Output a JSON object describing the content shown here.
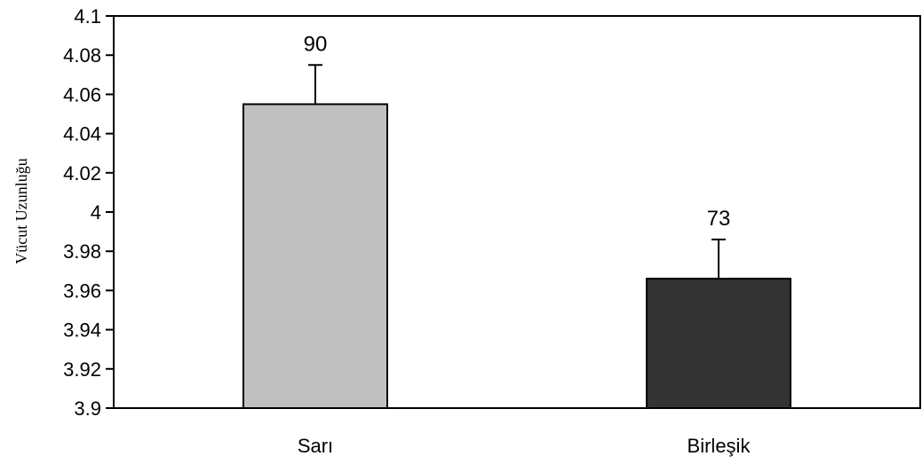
{
  "chart_data": {
    "type": "bar",
    "title": "",
    "xlabel": "",
    "ylabel": "Vücut Uzunluğu",
    "ylim": [
      3.9,
      4.1
    ],
    "yticks": [
      "3.9",
      "3.92",
      "3.94",
      "3.96",
      "3.98",
      "4",
      "4.02",
      "4.04",
      "4.06",
      "4.08",
      "4.1"
    ],
    "categories": [
      "Sarı",
      "Birleşik"
    ],
    "values": [
      4.055,
      3.966
    ],
    "error_upper": [
      0.02,
      0.02
    ],
    "data_labels": [
      "90",
      "73"
    ],
    "colors": [
      "#c0c0c0",
      "#333333"
    ],
    "grid": false
  }
}
